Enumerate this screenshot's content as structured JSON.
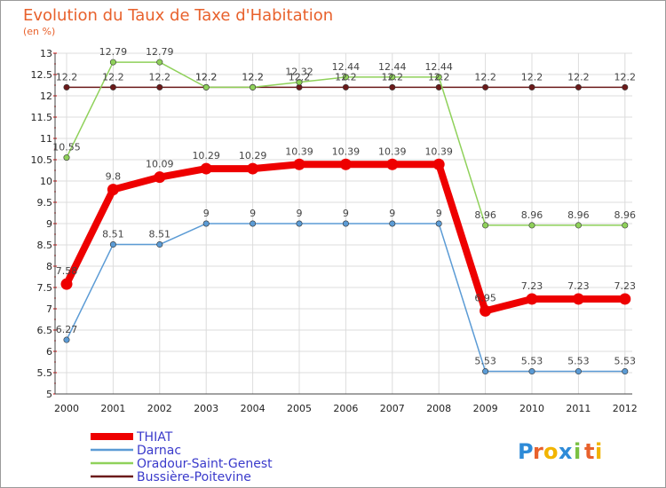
{
  "chart_data": {
    "type": "line",
    "title": "Evolution du Taux de Taxe d'Habitation",
    "unit_label": "(en %)",
    "xlabel": "",
    "ylabel": "(en %)",
    "ylim": [
      5,
      13
    ],
    "yticks": [
      "5",
      "5.5",
      "6",
      "6.5",
      "7",
      "7.5",
      "8",
      "8.5",
      "9",
      "9.5",
      "10",
      "10.5",
      "11",
      "11.5",
      "12",
      "12.5",
      "13"
    ],
    "categories": [
      "2000",
      "2001",
      "2002",
      "2003",
      "2004",
      "2005",
      "2006",
      "2007",
      "2008",
      "2009",
      "2010",
      "2011",
      "2012"
    ],
    "series": [
      {
        "name": "Bussière-Poitevine",
        "color": "#6b1a1a",
        "values": [
          12.2,
          12.2,
          12.2,
          12.2,
          12.2,
          12.2,
          12.2,
          12.2,
          12.2,
          12.2,
          12.2,
          12.2,
          12.2
        ],
        "labels": [
          "12.2",
          "12.2",
          "12.2",
          "12.2",
          "12.2",
          "12.2",
          "12.2",
          "12.2",
          "12.2",
          "12.2",
          "12.2",
          "12.2",
          "12.2"
        ]
      },
      {
        "name": "Oradour-Saint-Genest",
        "color": "#8fd15a",
        "values": [
          10.55,
          12.79,
          12.79,
          12.2,
          12.2,
          12.32,
          12.44,
          12.44,
          12.44,
          8.96,
          8.96,
          8.96,
          8.96
        ],
        "labels": [
          "10.55",
          "12.79",
          "12.79",
          "12.2",
          "12.2",
          "12.32",
          "12.44",
          "12.44",
          "12.44",
          "8.96",
          "8.96",
          "8.96",
          "8.96"
        ]
      },
      {
        "name": "Darnac",
        "color": "#5b9bd5",
        "values": [
          6.27,
          8.51,
          8.51,
          9,
          9,
          9,
          9,
          9,
          9,
          5.53,
          5.53,
          5.53,
          5.53
        ],
        "labels": [
          "6.27",
          "8.51",
          "8.51",
          "9",
          "9",
          "9",
          "9",
          "9",
          "9",
          "5.53",
          "5.53",
          "5.53",
          "5.53"
        ]
      },
      {
        "name": "THIAT",
        "color": "#ee0000",
        "values": [
          7.58,
          9.8,
          10.09,
          10.29,
          10.29,
          10.39,
          10.39,
          10.39,
          10.39,
          6.95,
          7.23,
          7.23,
          7.23
        ],
        "labels": [
          "7.58",
          "9.8",
          "10.09",
          "10.29",
          "10.29",
          "10.39",
          "10.39",
          "10.39",
          "10.39",
          "6.95",
          "7.23",
          "7.23",
          "7.23"
        ]
      }
    ],
    "legend": [
      "THIAT",
      "Darnac",
      "Oradour-Saint-Genest",
      "Bussière-Poitevine"
    ],
    "legend_position": "bottom-left"
  },
  "branding": {
    "letters": [
      "P",
      "r",
      "o",
      "x",
      "i",
      "t",
      "i"
    ],
    "colors": [
      "#2e8bd8",
      "#e8612c",
      "#f2b400",
      "#2e8bd8",
      "#7ac143",
      "#e8612c",
      "#f2b400"
    ]
  }
}
